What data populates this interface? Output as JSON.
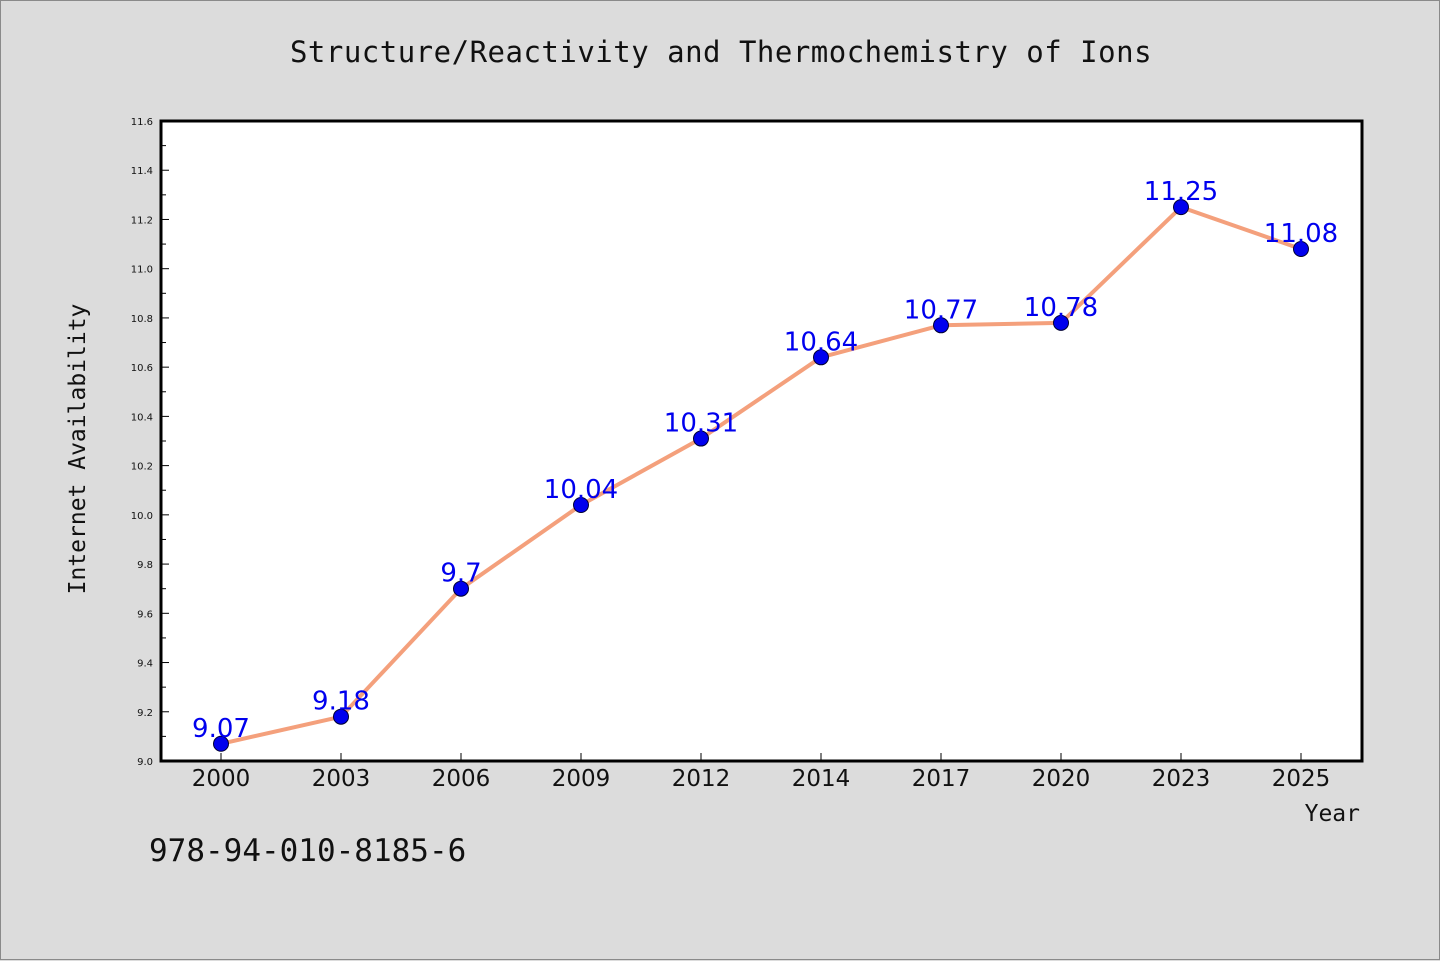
{
  "chart_data": {
    "type": "line",
    "title": "Structure/Reactivity and Thermochemistry of Ions",
    "xlabel": "Year",
    "ylabel": "Internet Availability",
    "categories": [
      "2000",
      "2003",
      "2006",
      "2009",
      "2012",
      "2014",
      "2017",
      "2020",
      "2023",
      "2025"
    ],
    "series": [
      {
        "values": [
          9.07,
          9.18,
          9.7,
          10.04,
          10.31,
          10.64,
          10.77,
          10.78,
          11.25,
          11.08
        ]
      }
    ],
    "data_labels": [
      "9.07",
      "9.18",
      "9.7",
      "10.04",
      "10.31",
      "10.64",
      "10.77",
      "10.78",
      "11.25",
      "11.08"
    ],
    "ylim": [
      9.0,
      11.6
    ],
    "yticks": [
      "9.0",
      "9.2",
      "9.4",
      "9.6",
      "9.8",
      "10.0",
      "10.2",
      "10.4",
      "10.6",
      "10.8",
      "11.0",
      "11.2",
      "11.4",
      "11.6"
    ],
    "grid": false,
    "legend": "none",
    "colors": {
      "line": "#f4a07c",
      "marker": "#0000ee",
      "label": "#0000ee",
      "plot_background": "#ffffff",
      "figure_background": "#dcdcdc"
    }
  },
  "footer": {
    "code": "978-94-010-8185-6"
  }
}
